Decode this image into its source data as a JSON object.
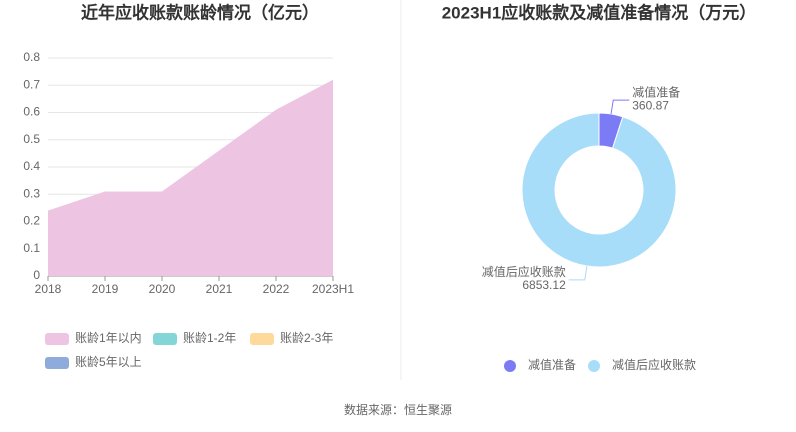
{
  "chart_data": [
    {
      "type": "area",
      "title": "近年应收账款账龄情况（亿元）",
      "categories": [
        "2018",
        "2019",
        "2020",
        "2021",
        "2022",
        "2023H1"
      ],
      "series": [
        {
          "name": "账龄1年以内",
          "color": "#edc4e2",
          "values": [
            0.24,
            0.31,
            0.31,
            0.46,
            0.61,
            0.72
          ]
        },
        {
          "name": "账龄1-2年",
          "color": "#84d5d8",
          "values": [
            0,
            0,
            0,
            0,
            0,
            0
          ]
        },
        {
          "name": "账龄2-3年",
          "color": "#fdd99c",
          "values": [
            0,
            0,
            0,
            0,
            0,
            0
          ]
        },
        {
          "name": "账龄5年以上",
          "color": "#8eabdb",
          "values": [
            0,
            0,
            0,
            0,
            0,
            0
          ]
        }
      ],
      "ylim": [
        0,
        0.8
      ],
      "yticks": [
        0,
        0.1,
        0.2,
        0.3,
        0.4,
        0.5,
        0.6,
        0.7,
        0.8
      ],
      "grid": true
    },
    {
      "type": "donut",
      "title": "2023H1应收账款及减值准备情况（万元）",
      "categories": [
        "减值准备",
        "减值后应收账款"
      ],
      "values": [
        360.87,
        6853.12
      ],
      "colors": [
        "#7b7bf5",
        "#a8ddf9"
      ]
    }
  ],
  "footer": "数据来源：恒生聚源"
}
